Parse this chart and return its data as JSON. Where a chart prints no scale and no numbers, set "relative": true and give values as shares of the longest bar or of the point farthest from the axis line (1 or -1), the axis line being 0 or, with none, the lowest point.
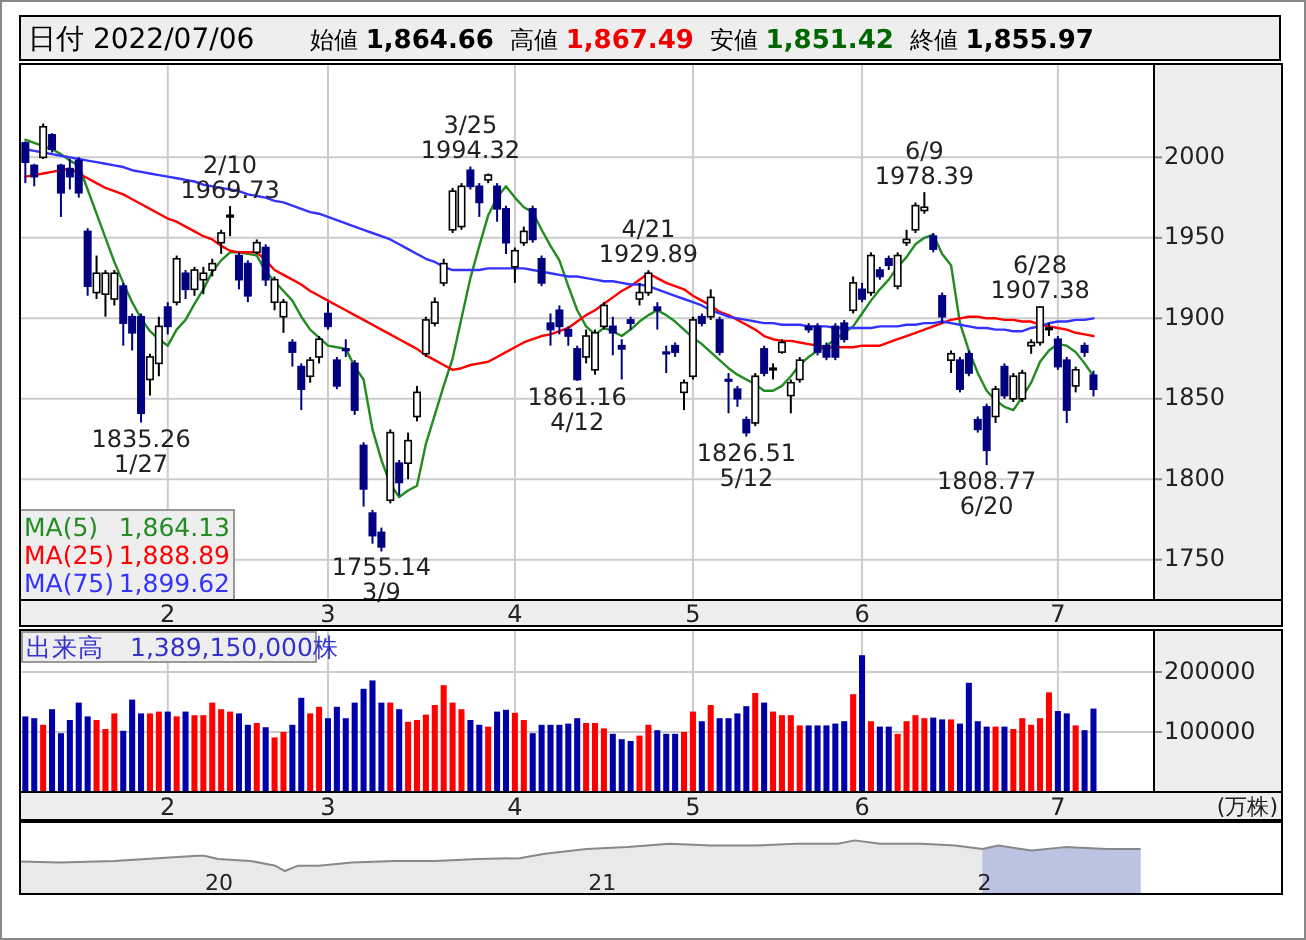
{
  "chart_data": [
    {
      "type": "candlestick",
      "title": "日付 2022/07/06",
      "annotations": [
        "始値 1,864.66",
        "高値 1,867.49",
        "安値 1,851.42",
        "終値 1,855.97",
        {
          "text": "1835.26\n1/27",
          "y": 1835.26
        },
        {
          "text": "2/10\n1969.73",
          "y": 1969.73
        },
        {
          "text": "1755.14\n3/9",
          "y": 1755.14
        },
        {
          "text": "3/25\n1994.32",
          "y": 1994.32
        },
        {
          "text": "1861.16\n4/12",
          "y": 1861.16
        },
        {
          "text": "4/21\n1929.89",
          "y": 1929.89
        },
        {
          "text": "1826.51\n5/12",
          "y": 1826.51
        },
        {
          "text": "6/9\n1978.39",
          "y": 1978.39
        },
        {
          "text": "1808.77\n6/20",
          "y": 1808.77
        },
        {
          "text": "6/28\n1907.38",
          "y": 1907.38
        }
      ],
      "categories": [
        null,
        null,
        null,
        null,
        null,
        null,
        null,
        null,
        null,
        null,
        null,
        null,
        null,
        null,
        null,
        null,
        "2",
        null,
        null,
        null,
        null,
        null,
        null,
        null,
        null,
        null,
        null,
        null,
        null,
        null,
        null,
        null,
        null,
        null,
        "3",
        null,
        null,
        null,
        null,
        null,
        null,
        null,
        null,
        null,
        null,
        null,
        null,
        null,
        null,
        null,
        null,
        null,
        null,
        null,
        null,
        "4",
        null,
        null,
        null,
        null,
        null,
        null,
        null,
        null,
        null,
        null,
        null,
        null,
        null,
        null,
        null,
        null,
        null,
        null,
        null,
        "5",
        null,
        null,
        null,
        null,
        null,
        null,
        null,
        null,
        null,
        null,
        null,
        null,
        null,
        null,
        null,
        null,
        null,
        null,
        "6",
        null,
        null,
        null,
        null,
        null,
        null,
        null,
        null,
        null,
        null,
        null,
        null,
        null,
        null,
        null,
        null,
        null,
        null,
        null,
        null,
        null,
        "7",
        null,
        null,
        null,
        null
      ],
      "ohlc": [
        [
          2009,
          2010,
          1984,
          1997
        ],
        [
          1995,
          1996,
          1982,
          1988
        ],
        [
          2000,
          2021,
          1999,
          2019
        ],
        [
          2014,
          2015,
          2003,
          2005
        ],
        [
          1995,
          1996,
          1963,
          1978
        ],
        [
          1993,
          1999,
          1980,
          1988
        ],
        [
          1998,
          2000,
          1975,
          1978
        ],
        [
          1954,
          1956,
          1914,
          1920
        ],
        [
          1916,
          1939,
          1912,
          1928
        ],
        [
          1915,
          1930,
          1901,
          1928
        ],
        [
          1912,
          1930,
          1908,
          1928
        ],
        [
          1920,
          1922,
          1883,
          1897
        ],
        [
          1901,
          1903,
          1880,
          1891
        ],
        [
          1901,
          1903,
          1835.26,
          1841
        ],
        [
          1862,
          1878,
          1852,
          1876
        ],
        [
          1872,
          1901,
          1864,
          1895
        ],
        [
          1907,
          1910,
          1890,
          1895
        ],
        [
          1910,
          1939,
          1908,
          1937
        ],
        [
          1928,
          1930,
          1912,
          1918
        ],
        [
          1918,
          1932,
          1914,
          1930
        ],
        [
          1924,
          1932,
          1915,
          1928
        ],
        [
          1930,
          1937,
          1926,
          1934
        ],
        [
          1947,
          1955,
          1940,
          1953
        ],
        [
          1963,
          1969.73,
          1951,
          1964
        ],
        [
          1939,
          1941,
          1918,
          1924
        ],
        [
          1934,
          1936,
          1910,
          1914
        ],
        [
          1941,
          1949,
          1940,
          1947
        ],
        [
          1944,
          1946,
          1920,
          1924
        ],
        [
          1910,
          1926,
          1905,
          1924
        ],
        [
          1901,
          1912,
          1891,
          1910
        ],
        [
          1885,
          1887,
          1870,
          1879
        ],
        [
          1870,
          1872,
          1843,
          1856
        ],
        [
          1864,
          1876,
          1860,
          1874
        ],
        [
          1876,
          1889,
          1872,
          1887
        ],
        [
          1903,
          1910,
          1893,
          1895
        ],
        [
          1874,
          1876,
          1856,
          1858
        ],
        [
          1881,
          1887,
          1876,
          1880
        ],
        [
          1872,
          1874,
          1840,
          1843
        ],
        [
          1821,
          1823,
          1783,
          1794
        ],
        [
          1779,
          1781,
          1760,
          1765
        ],
        [
          1767,
          1770,
          1755.14,
          1758
        ],
        [
          1787,
          1831,
          1785,
          1829
        ],
        [
          1810,
          1812,
          1790,
          1798
        ],
        [
          1810,
          1829,
          1800,
          1824
        ],
        [
          1839,
          1858,
          1836,
          1854
        ],
        [
          1878,
          1901,
          1876,
          1899
        ],
        [
          1897,
          1913,
          1895,
          1910
        ],
        [
          1922,
          1937,
          1920,
          1934
        ],
        [
          1955,
          1981,
          1953,
          1979
        ],
        [
          1957,
          1984,
          1955,
          1982
        ],
        [
          1992,
          1994.32,
          1980,
          1982
        ],
        [
          1982,
          1984,
          1963,
          1972
        ],
        [
          1986,
          1990,
          1984,
          1989
        ],
        [
          1982,
          1984,
          1960,
          1968
        ],
        [
          1968,
          1970,
          1940,
          1947
        ],
        [
          1932,
          1944,
          1922,
          1942
        ],
        [
          1947,
          1957,
          1945,
          1954
        ],
        [
          1968,
          1970,
          1947,
          1949
        ],
        [
          1937,
          1939,
          1920,
          1922
        ],
        [
          1897,
          1903,
          1883,
          1893
        ],
        [
          1905,
          1908,
          1890,
          1895
        ],
        [
          1893,
          1895,
          1883,
          1889
        ],
        [
          1881,
          1883,
          1861.16,
          1862
        ],
        [
          1876,
          1893,
          1872,
          1889
        ],
        [
          1868,
          1893,
          1865,
          1891
        ],
        [
          1895,
          1910,
          1893,
          1908
        ],
        [
          1895,
          1901,
          1877,
          1891
        ],
        [
          1883,
          1887,
          1862,
          1881
        ],
        [
          1899,
          1901,
          1893,
          1897
        ],
        [
          1912,
          1922,
          1908,
          1916
        ],
        [
          1916,
          1929.89,
          1914,
          1928
        ],
        [
          1907,
          1910,
          1893,
          1905
        ],
        [
          1879,
          1883,
          1866,
          1878
        ],
        [
          1883,
          1885,
          1876,
          1879
        ],
        [
          1854,
          1862,
          1843,
          1860
        ],
        [
          1864,
          1901,
          1862,
          1899
        ],
        [
          1901,
          1903,
          1895,
          1897
        ],
        [
          1901,
          1918,
          1899,
          1913
        ],
        [
          1899,
          1901,
          1877,
          1879
        ],
        [
          1862,
          1866,
          1841,
          1861
        ],
        [
          1856,
          1858,
          1845,
          1850
        ],
        [
          1837,
          1839,
          1826.51,
          1829
        ],
        [
          1835,
          1866,
          1833,
          1864
        ],
        [
          1881,
          1883,
          1864,
          1866
        ],
        [
          1868,
          1872,
          1862,
          1869
        ],
        [
          1879,
          1887,
          1878,
          1885
        ],
        [
          1852,
          1862,
          1841,
          1860
        ],
        [
          1862,
          1876,
          1860,
          1874
        ],
        [
          1895,
          1897,
          1891,
          1893
        ],
        [
          1895,
          1897,
          1877,
          1879
        ],
        [
          1883,
          1885,
          1874,
          1876
        ],
        [
          1895,
          1897,
          1874,
          1876
        ],
        [
          1897,
          1899,
          1885,
          1887
        ],
        [
          1905,
          1926,
          1903,
          1922
        ],
        [
          1918,
          1922,
          1910,
          1912
        ],
        [
          1916,
          1941,
          1914,
          1939
        ],
        [
          1930,
          1932,
          1924,
          1926
        ],
        [
          1937,
          1939,
          1930,
          1933
        ],
        [
          1920,
          1941,
          1918,
          1939
        ],
        [
          1947,
          1955,
          1945,
          1949
        ],
        [
          1955,
          1972,
          1953,
          1970
        ],
        [
          1967,
          1978.39,
          1965,
          1969
        ],
        [
          1951,
          1953,
          1941,
          1943
        ],
        [
          1914,
          1916,
          1897,
          1901
        ],
        [
          1874,
          1880,
          1866,
          1878
        ],
        [
          1874,
          1876,
          1854,
          1856
        ],
        [
          1878,
          1880,
          1864,
          1866
        ],
        [
          1837,
          1839,
          1829,
          1831
        ],
        [
          1845,
          1847,
          1808.77,
          1818
        ],
        [
          1839,
          1858,
          1835,
          1856
        ],
        [
          1870,
          1872,
          1850,
          1852
        ],
        [
          1850,
          1866,
          1848,
          1864
        ],
        [
          1850,
          1868,
          1848,
          1866
        ],
        [
          1883,
          1887,
          1878,
          1885
        ],
        [
          1885,
          1907.38,
          1883,
          1907
        ],
        [
          1893,
          1897,
          1889,
          1894
        ],
        [
          1887,
          1889,
          1868,
          1870
        ],
        [
          1874,
          1876,
          1835,
          1843
        ],
        [
          1858,
          1870,
          1854,
          1868
        ],
        [
          1883,
          1885,
          1876,
          1879
        ],
        [
          1864.66,
          1867.49,
          1851.42,
          1855.97
        ]
      ],
      "series": [
        {
          "name": "MA(5) 1,864.13",
          "type": "line",
          "color": "#228b22",
          "values": [
            2011,
            2009,
            2007,
            2005,
            2002,
            1998,
            1995,
            1980,
            1965,
            1950,
            1935,
            1922,
            1910,
            1900,
            1892,
            1887,
            1883,
            1893,
            1899,
            1909,
            1918,
            1929,
            1936,
            1941,
            1941,
            1940,
            1939,
            1929,
            1923,
            1917,
            1911,
            1901,
            1893,
            1888,
            1883,
            1882,
            1881,
            1870,
            1862,
            1831,
            1812,
            1797,
            1789,
            1793,
            1796,
            1822,
            1840,
            1858,
            1875,
            1900,
            1925,
            1945,
            1964,
            1975,
            1982,
            1975,
            1969,
            1966,
            1955,
            1945,
            1936,
            1920,
            1905,
            1895,
            1890,
            1894,
            1892,
            1889,
            1893,
            1898,
            1902,
            1905,
            1902,
            1898,
            1893,
            1888,
            1884,
            1879,
            1874,
            1869,
            1865,
            1862,
            1859,
            1855,
            1855,
            1858,
            1864,
            1871,
            1876,
            1880,
            1883,
            1887,
            1891,
            1895,
            1903,
            1911,
            1918,
            1924,
            1932,
            1938,
            1946,
            1950,
            1952,
            1940,
            1933,
            1897,
            1880,
            1866,
            1855,
            1849,
            1845,
            1843,
            1851,
            1860,
            1873,
            1880,
            1884,
            1883,
            1879,
            1872,
            1864
          ]
        },
        {
          "name": "MA(25) 1,888.89",
          "type": "line",
          "color": "#ff0000",
          "values": [
            1988,
            1989,
            1990,
            1991,
            1992,
            1993,
            1990,
            1987,
            1984,
            1981,
            1979,
            1977,
            1974,
            1971,
            1968,
            1965,
            1962,
            1960,
            1957,
            1954,
            1951,
            1949,
            1945,
            1942,
            1941,
            1941,
            1941,
            1936,
            1930,
            1927,
            1924,
            1921,
            1917,
            1914,
            1911,
            1908,
            1905,
            1902,
            1899,
            1896,
            1893,
            1890,
            1887,
            1884,
            1881,
            1877,
            1874,
            1871,
            1868,
            1869,
            1871,
            1872,
            1873,
            1876,
            1879,
            1882,
            1885,
            1887,
            1889,
            1890,
            1892,
            1894,
            1898,
            1902,
            1905,
            1909,
            1913,
            1917,
            1920,
            1924,
            1928,
            1925,
            1922,
            1920,
            1918,
            1914,
            1911,
            1908,
            1904,
            1902,
            1899,
            1896,
            1893,
            1889,
            1887,
            1886,
            1886,
            1885,
            1884,
            1883,
            1882,
            1882,
            1882,
            1882,
            1883,
            1883,
            1883,
            1885,
            1887,
            1889,
            1891,
            1893,
            1895,
            1897,
            1899,
            1900,
            1901,
            1901,
            1900,
            1900,
            1899,
            1899,
            1898,
            1898,
            1896,
            1895,
            1894,
            1893,
            1891,
            1890,
            1889
          ]
        },
        {
          "name": "MA(75) 1,899.62",
          "type": "line",
          "color": "#3333ff",
          "values": [
            2005,
            2004,
            2003,
            2002,
            2001,
            2000,
            1999,
            1998,
            1997,
            1996,
            1995,
            1994,
            1992,
            1991,
            1990,
            1989,
            1988,
            1987,
            1986,
            1985,
            1983,
            1982,
            1981,
            1980,
            1979,
            1977,
            1976,
            1975,
            1973,
            1972,
            1970,
            1968,
            1966,
            1965,
            1963,
            1961,
            1959,
            1957,
            1955,
            1953,
            1951,
            1949,
            1946,
            1943,
            1940,
            1937,
            1935,
            1932,
            1930,
            1930,
            1930,
            1930,
            1931,
            1931,
            1931,
            1931,
            1931,
            1930,
            1929,
            1928,
            1927,
            1926,
            1926,
            1925,
            1924,
            1923,
            1923,
            1922,
            1921,
            1921,
            1920,
            1918,
            1916,
            1914,
            1912,
            1910,
            1908,
            1905,
            1903,
            1901,
            1900,
            1899,
            1898,
            1897,
            1897,
            1896,
            1896,
            1896,
            1895,
            1895,
            1895,
            1894,
            1894,
            1894,
            1894,
            1894,
            1895,
            1895,
            1895,
            1896,
            1896,
            1897,
            1897,
            1898,
            1897,
            1896,
            1895,
            1894,
            1894,
            1893,
            1893,
            1892,
            1892,
            1894,
            1895,
            1897,
            1898,
            1898,
            1899,
            1899,
            1900
          ]
        }
      ],
      "ylim": [
        1725,
        2058
      ],
      "yticks": [
        1750,
        1800,
        1850,
        1900,
        1950,
        2000
      ],
      "grid": true,
      "legend": "bottom left"
    },
    {
      "type": "bar",
      "title": "出来高　1,389,150,000株",
      "ylabel": "(万株)",
      "categories": [
        null,
        null,
        null,
        null,
        null,
        null,
        null,
        null,
        null,
        null,
        null,
        null,
        null,
        null,
        null,
        null,
        "2",
        null,
        null,
        null,
        null,
        null,
        null,
        null,
        null,
        null,
        null,
        null,
        null,
        null,
        null,
        null,
        null,
        null,
        "3",
        null,
        null,
        null,
        null,
        null,
        null,
        null,
        null,
        null,
        null,
        null,
        null,
        null,
        null,
        null,
        null,
        null,
        null,
        null,
        null,
        "4",
        null,
        null,
        null,
        null,
        null,
        null,
        null,
        null,
        null,
        null,
        null,
        null,
        null,
        null,
        null,
        null,
        null,
        null,
        null,
        "5",
        null,
        null,
        null,
        null,
        null,
        null,
        null,
        null,
        null,
        null,
        null,
        null,
        null,
        null,
        null,
        null,
        null,
        null,
        "6",
        null,
        null,
        null,
        null,
        null,
        null,
        null,
        null,
        null,
        null,
        null,
        null,
        null,
        null,
        null,
        null,
        null,
        null,
        null,
        null,
        null,
        "7",
        null,
        null,
        null,
        null
      ],
      "values": [
        126000,
        123000,
        112000,
        138000,
        98000,
        120000,
        149000,
        126000,
        120000,
        105000,
        131000,
        102000,
        154000,
        131000,
        131000,
        134000,
        134000,
        126000,
        134000,
        128000,
        128000,
        149000,
        138000,
        134000,
        131000,
        112000,
        115000,
        108000,
        91000,
        100000,
        112000,
        157000,
        131000,
        142000,
        123000,
        142000,
        123000,
        149000,
        172000,
        186000,
        149000,
        149000,
        138000,
        117000,
        120000,
        129000,
        145000,
        178000,
        149000,
        138000,
        120000,
        112000,
        109000,
        134000,
        137000,
        132000,
        120000,
        98000,
        112000,
        112000,
        112000,
        114000,
        123000,
        115000,
        115000,
        106000,
        97000,
        88000,
        85000,
        94000,
        112000,
        103000,
        97000,
        97000,
        100000,
        134000,
        118000,
        145000,
        123000,
        123000,
        131000,
        143000,
        165000,
        149000,
        134000,
        128000,
        128000,
        111000,
        111000,
        111000,
        111000,
        114000,
        118000,
        163000,
        228000,
        118000,
        109000,
        109000,
        97000,
        118000,
        128000,
        123000,
        124000,
        121000,
        121000,
        114000,
        182000,
        118000,
        109000,
        109000,
        109000,
        105000,
        123000,
        112000,
        123000,
        166000,
        135000,
        131000,
        111000,
        103000,
        139000
      ],
      "colors": [
        "#0000aa",
        "#0000aa",
        "#ff0000",
        "#0000aa",
        "#0000aa",
        "#0000aa",
        "#0000aa",
        "#0000aa",
        "#ff0000",
        "#ff0000",
        "#ff0000",
        "#0000aa",
        "#0000aa",
        "#0000aa",
        "#ff0000",
        "#ff0000",
        "#0000aa",
        "#ff0000",
        "#0000aa",
        "#ff0000",
        "#ff0000",
        "#ff0000",
        "#ff0000",
        "#ff0000",
        "#0000aa",
        "#0000aa",
        "#ff0000",
        "#0000aa",
        "#ff0000",
        "#ff0000",
        "#0000aa",
        "#0000aa",
        "#ff0000",
        "#ff0000",
        "#0000aa",
        "#0000aa",
        "#0000aa",
        "#0000aa",
        "#0000aa",
        "#0000aa",
        "#0000aa",
        "#ff0000",
        "#0000aa",
        "#ff0000",
        "#ff0000",
        "#ff0000",
        "#ff0000",
        "#ff0000",
        "#ff0000",
        "#ff0000",
        "#0000aa",
        "#0000aa",
        "#ff0000",
        "#0000aa",
        "#0000aa",
        "#ff0000",
        "#ff0000",
        "#0000aa",
        "#0000aa",
        "#0000aa",
        "#0000aa",
        "#0000aa",
        "#0000aa",
        "#ff0000",
        "#ff0000",
        "#ff0000",
        "#0000aa",
        "#0000aa",
        "#0000aa",
        "#ff0000",
        "#ff0000",
        "#0000aa",
        "#0000aa",
        "#0000aa",
        "#ff0000",
        "#ff0000",
        "#0000aa",
        "#ff0000",
        "#0000aa",
        "#0000aa",
        "#0000aa",
        "#0000aa",
        "#ff0000",
        "#0000aa",
        "#ff0000",
        "#ff0000",
        "#ff0000",
        "#ff0000",
        "#0000aa",
        "#0000aa",
        "#0000aa",
        "#0000aa",
        "#0000aa",
        "#ff0000",
        "#0000aa",
        "#ff0000",
        "#0000aa",
        "#0000aa",
        "#ff0000",
        "#ff0000",
        "#ff0000",
        "#ff0000",
        "#0000aa",
        "#0000aa",
        "#ff0000",
        "#0000aa",
        "#0000aa",
        "#0000aa",
        "#0000aa",
        "#ff0000",
        "#0000aa",
        "#ff0000",
        "#ff0000",
        "#ff0000",
        "#ff0000",
        "#ff0000",
        "#0000aa",
        "#0000aa",
        "#ff0000",
        "#0000aa",
        "#0000aa"
      ],
      "ylim": [
        0,
        270000
      ],
      "yticks": [
        100000,
        200000
      ],
      "grid": true
    },
    {
      "type": "area",
      "relative": true,
      "x": [
        "2019-06-25",
        "2019-08-02",
        "2019-09-23",
        "2019-11-03",
        "2019-12-12",
        "2019-12-18",
        "2019-12-31",
        "2020-01-31",
        "2020-02-24",
        "2020-03-04",
        "2020-03-16",
        "2020-04-05",
        "2020-05-07",
        "2020-06-16",
        "2020-07-26",
        "2020-09-04",
        "2020-10-14",
        "2020-11-07",
        "2020-12-17",
        "2021-01-25",
        "2021-03-06",
        "2021-04-15",
        "2021-05-26",
        "2021-07-05",
        "2021-08-14",
        "2021-08-30",
        "2021-09-23",
        "2021-11-02",
        "2021-12-04",
        "2021-12-30",
        "2022-01-14",
        "2022-02-15",
        "2022-03-19",
        "2022-04-28",
        "2022-05-30"
      ],
      "series": [
        {
          "color": "#888888",
          "values": [
            0.31,
            0.28,
            0.33,
            0.42,
            0.5,
            0.5,
            0.39,
            0.33,
            0.17,
            0,
            0.17,
            0.17,
            0.28,
            0.33,
            0.33,
            0.39,
            0.42,
            0.56,
            0.72,
            0.78,
            0.89,
            0.83,
            0.83,
            0.89,
            0.89,
            1,
            0.89,
            0.89,
            0.83,
            0.72,
            0.83,
            0.67,
            0.78,
            0.72,
            0.72
          ]
        }
      ],
      "xlim": [
        "2019-06-25",
        "2022-10-12"
      ],
      "xticks": [
        {
          "value": "2020-01-01",
          "label": "20"
        },
        {
          "value": "2021-01-01",
          "label": "21"
        },
        {
          "value": "2022-01-01",
          "label": "2"
        }
      ],
      "bands": [
        {
          "axis": "x",
          "from": "2021-12-30",
          "to": "2022-07-06",
          "color": "#b4c0f4"
        }
      ]
    }
  ]
}
